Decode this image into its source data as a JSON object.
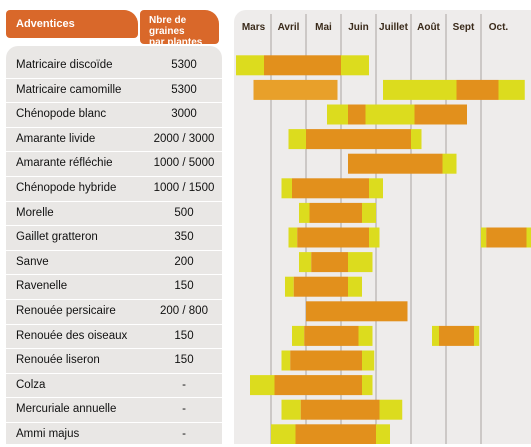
{
  "headers": {
    "adventices": "Adventices",
    "graines_line1": "Nbre de graines",
    "graines_line2": "par plantes"
  },
  "colors": {
    "accent": "#d9682a",
    "yellow": "#dcdc1e",
    "orange": "#e2901c"
  },
  "chart_data": {
    "type": "bar",
    "months": [
      "Mars",
      "Avril",
      "Mai",
      "Juin",
      "Juillet",
      "Août",
      "Sept",
      "Oct."
    ],
    "rows": [
      {
        "name": "Matricaire discoïde",
        "graines": "5300",
        "segments": [
          {
            "start": 0.0,
            "end": 0.8,
            "level": "yellow"
          },
          {
            "start": 0.8,
            "end": 3.0,
            "level": "orange"
          },
          {
            "start": 3.0,
            "end": 3.8,
            "level": "yellow"
          }
        ]
      },
      {
        "name": "Matricaire camomille",
        "graines": "5300",
        "segments": [
          {
            "start": 0.5,
            "end": 2.9,
            "level": "orange-light"
          },
          {
            "start": 4.2,
            "end": 6.3,
            "level": "yellow"
          },
          {
            "start": 6.3,
            "end": 7.5,
            "level": "orange"
          },
          {
            "start": 7.5,
            "end": 8.25,
            "level": "yellow"
          }
        ]
      },
      {
        "name": "Chénopode blanc",
        "graines": "3000",
        "segments": [
          {
            "start": 2.6,
            "end": 3.2,
            "level": "yellow"
          },
          {
            "start": 3.2,
            "end": 3.7,
            "level": "orange"
          },
          {
            "start": 3.7,
            "end": 5.1,
            "level": "yellow"
          },
          {
            "start": 5.1,
            "end": 6.6,
            "level": "orange"
          }
        ]
      },
      {
        "name": "Amarante livide",
        "graines": "2000 / 3000",
        "segments": [
          {
            "start": 1.5,
            "end": 2.0,
            "level": "yellow"
          },
          {
            "start": 2.0,
            "end": 5.0,
            "level": "orange"
          },
          {
            "start": 5.0,
            "end": 5.3,
            "level": "yellow"
          }
        ]
      },
      {
        "name": "Amarante réfléchie",
        "graines": "1000 / 5000",
        "segments": [
          {
            "start": 3.2,
            "end": 5.9,
            "level": "orange"
          },
          {
            "start": 5.9,
            "end": 6.3,
            "level": "yellow"
          }
        ]
      },
      {
        "name": "Chénopode hybride",
        "graines": "1000 / 1500",
        "segments": [
          {
            "start": 1.3,
            "end": 1.6,
            "level": "yellow"
          },
          {
            "start": 1.6,
            "end": 3.8,
            "level": "orange"
          },
          {
            "start": 3.8,
            "end": 4.2,
            "level": "yellow"
          }
        ]
      },
      {
        "name": "Morelle",
        "graines": "500",
        "segments": [
          {
            "start": 1.8,
            "end": 2.1,
            "level": "yellow"
          },
          {
            "start": 2.1,
            "end": 3.6,
            "level": "orange"
          },
          {
            "start": 3.6,
            "end": 4.0,
            "level": "yellow"
          }
        ]
      },
      {
        "name": "Gaillet gratteron",
        "graines": "350",
        "segments": [
          {
            "start": 1.5,
            "end": 1.75,
            "level": "yellow"
          },
          {
            "start": 1.75,
            "end": 3.8,
            "level": "orange"
          },
          {
            "start": 3.8,
            "end": 4.1,
            "level": "yellow"
          },
          {
            "start": 7.0,
            "end": 7.15,
            "level": "yellow"
          },
          {
            "start": 7.15,
            "end": 8.3,
            "level": "orange"
          },
          {
            "start": 8.3,
            "end": 8.45,
            "level": "yellow"
          }
        ]
      },
      {
        "name": "Sanve",
        "graines": "200",
        "segments": [
          {
            "start": 1.8,
            "end": 2.15,
            "level": "yellow"
          },
          {
            "start": 2.15,
            "end": 3.2,
            "level": "orange"
          },
          {
            "start": 3.2,
            "end": 3.9,
            "level": "yellow"
          }
        ]
      },
      {
        "name": "Ravenelle",
        "graines": "150",
        "segments": [
          {
            "start": 1.4,
            "end": 1.65,
            "level": "yellow"
          },
          {
            "start": 1.65,
            "end": 3.2,
            "level": "orange"
          },
          {
            "start": 3.2,
            "end": 3.6,
            "level": "yellow"
          }
        ]
      },
      {
        "name": "Renouée persicaire",
        "graines": "200 / 800",
        "segments": [
          {
            "start": 2.0,
            "end": 4.9,
            "level": "orange"
          }
        ]
      },
      {
        "name": "Renouée des oiseaux",
        "graines": "150",
        "segments": [
          {
            "start": 1.6,
            "end": 1.95,
            "level": "yellow"
          },
          {
            "start": 1.95,
            "end": 3.5,
            "level": "orange"
          },
          {
            "start": 3.5,
            "end": 3.9,
            "level": "yellow"
          },
          {
            "start": 5.6,
            "end": 5.8,
            "level": "yellow"
          },
          {
            "start": 5.8,
            "end": 6.8,
            "level": "orange"
          },
          {
            "start": 6.8,
            "end": 6.95,
            "level": "yellow"
          }
        ]
      },
      {
        "name": "Renouée liseron",
        "graines": "150",
        "segments": [
          {
            "start": 1.3,
            "end": 1.55,
            "level": "yellow"
          },
          {
            "start": 1.55,
            "end": 3.6,
            "level": "orange"
          },
          {
            "start": 3.6,
            "end": 3.95,
            "level": "yellow"
          }
        ]
      },
      {
        "name": "Colza",
        "graines": "-",
        "segments": [
          {
            "start": 0.4,
            "end": 1.1,
            "level": "yellow"
          },
          {
            "start": 1.1,
            "end": 3.6,
            "level": "orange"
          },
          {
            "start": 3.6,
            "end": 3.9,
            "level": "yellow"
          }
        ]
      },
      {
        "name": "Mercuriale annuelle",
        "graines": "-",
        "segments": [
          {
            "start": 1.3,
            "end": 1.85,
            "level": "yellow"
          },
          {
            "start": 1.85,
            "end": 4.1,
            "level": "orange"
          },
          {
            "start": 4.1,
            "end": 4.75,
            "level": "yellow"
          }
        ]
      },
      {
        "name": "Ammi majus",
        "graines": "-",
        "segments": [
          {
            "start": 1.0,
            "end": 1.7,
            "level": "yellow"
          },
          {
            "start": 1.7,
            "end": 4.0,
            "level": "orange"
          },
          {
            "start": 4.0,
            "end": 4.4,
            "level": "yellow"
          }
        ]
      }
    ]
  }
}
